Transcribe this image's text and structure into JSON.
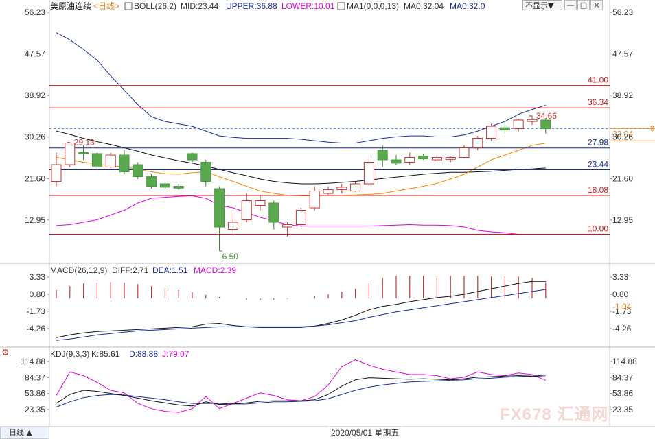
{
  "header": {
    "title": "美原油连续",
    "period_tag": "<日线>",
    "indicators": [
      {
        "text": "BOLL(26,2)",
        "color": "#333333"
      },
      {
        "text": "MID:23.44",
        "color": "#333333"
      },
      {
        "text": "UPPER:36.88",
        "color": "#1a2c99"
      },
      {
        "text": "LOWER:10.01",
        "color": "#e000e0"
      },
      {
        "text": "MA1(0,0,0,13)",
        "color": "#333333"
      },
      {
        "text": "MA0:32.04",
        "color": "#333333"
      },
      {
        "text": "MA0:32.0",
        "color": "#1a2c99"
      }
    ],
    "dropdown_label": "不显示▼",
    "btn_min": "—",
    "btn_close": "×"
  },
  "macd_header": {
    "items": [
      {
        "text": "MACD(26,12,9)",
        "color": "#333333"
      },
      {
        "text": "DIFF:2.71",
        "color": "#333333"
      },
      {
        "text": "DEA:1.51",
        "color": "#1a2c99"
      },
      {
        "text": "MACD:2.39",
        "color": "#e000e0"
      }
    ]
  },
  "kdj_header": {
    "items": [
      {
        "text": "KDJ(9,3,3)",
        "color": "#333333"
      },
      {
        "text": "K:85.61",
        "color": "#333333"
      },
      {
        "text": "D:88.88",
        "color": "#1a2c99"
      },
      {
        "text": "J:79.07",
        "color": "#e000e0"
      }
    ]
  },
  "footer": {
    "period_button": "日线",
    "date_label": "2020/05/01 星期五"
  },
  "watermark": "FX678 汇通网",
  "chart_data": [
    {
      "type": "candlestick",
      "ylim": [
        6.5,
        56.23
      ],
      "y_ticks": [
        "56.23",
        "47.57",
        "38.92",
        "30.26",
        "21.60",
        "12.95"
      ],
      "tick_values": [
        56.23,
        47.57,
        38.92,
        30.26,
        21.6,
        12.95
      ],
      "candles": [
        {
          "o": 21.0,
          "h": 27.0,
          "l": 20.0,
          "c": 24.5
        },
        {
          "o": 24.5,
          "h": 29.1,
          "l": 24.0,
          "c": 29.0
        },
        {
          "o": 27.0,
          "h": 28.5,
          "l": 25.5,
          "c": 26.8
        },
        {
          "o": 26.8,
          "h": 27.0,
          "l": 23.5,
          "c": 24.2
        },
        {
          "o": 24.0,
          "h": 27.0,
          "l": 23.8,
          "c": 26.5
        },
        {
          "o": 26.5,
          "h": 27.5,
          "l": 22.5,
          "c": 23.0
        },
        {
          "o": 24.5,
          "h": 25.0,
          "l": 21.5,
          "c": 22.0
        },
        {
          "o": 22.0,
          "h": 22.5,
          "l": 19.5,
          "c": 20.0
        },
        {
          "o": 20.5,
          "h": 21.0,
          "l": 19.5,
          "c": 19.8
        },
        {
          "o": 20.0,
          "h": 20.5,
          "l": 19.3,
          "c": 19.6
        },
        {
          "o": 26.8,
          "h": 27.0,
          "l": 25.0,
          "c": 25.5
        },
        {
          "o": 25.0,
          "h": 25.5,
          "l": 20.0,
          "c": 21.0
        },
        {
          "o": 19.5,
          "h": 20.0,
          "l": 6.5,
          "c": 11.5
        },
        {
          "o": 11.0,
          "h": 14.5,
          "l": 10.0,
          "c": 12.5
        },
        {
          "o": 13.0,
          "h": 18.5,
          "l": 12.5,
          "c": 17.0
        },
        {
          "o": 16.0,
          "h": 18.0,
          "l": 15.0,
          "c": 17.0
        },
        {
          "o": 16.5,
          "h": 17.0,
          "l": 11.0,
          "c": 12.5
        },
        {
          "o": 11.5,
          "h": 12.5,
          "l": 9.5,
          "c": 12.0
        },
        {
          "o": 12.0,
          "h": 15.5,
          "l": 11.5,
          "c": 15.0
        },
        {
          "o": 15.5,
          "h": 20.0,
          "l": 15.0,
          "c": 19.0
        },
        {
          "o": 18.5,
          "h": 20.0,
          "l": 18.0,
          "c": 19.3
        },
        {
          "o": 19.3,
          "h": 20.5,
          "l": 18.5,
          "c": 19.8
        },
        {
          "o": 19.0,
          "h": 21.0,
          "l": 18.8,
          "c": 20.5
        },
        {
          "o": 20.5,
          "h": 26.0,
          "l": 20.0,
          "c": 25.0
        },
        {
          "o": 27.5,
          "h": 28.5,
          "l": 24.0,
          "c": 25.5
        },
        {
          "o": 25.5,
          "h": 26.5,
          "l": 24.5,
          "c": 24.8
        },
        {
          "o": 25.0,
          "h": 27.0,
          "l": 24.5,
          "c": 26.0
        },
        {
          "o": 26.3,
          "h": 26.8,
          "l": 25.5,
          "c": 25.7
        },
        {
          "o": 25.5,
          "h": 26.5,
          "l": 25.2,
          "c": 26.0
        },
        {
          "o": 25.6,
          "h": 26.3,
          "l": 25.0,
          "c": 26.0
        },
        {
          "o": 26.0,
          "h": 28.5,
          "l": 25.8,
          "c": 28.0
        },
        {
          "o": 28.0,
          "h": 30.5,
          "l": 27.5,
          "c": 30.0
        },
        {
          "o": 30.0,
          "h": 33.0,
          "l": 29.5,
          "c": 32.5
        },
        {
          "o": 32.2,
          "h": 33.5,
          "l": 31.0,
          "c": 31.8
        },
        {
          "o": 32.0,
          "h": 34.0,
          "l": 31.5,
          "c": 33.8
        },
        {
          "o": 33.5,
          "h": 34.7,
          "l": 32.8,
          "c": 33.9
        },
        {
          "o": 33.8,
          "h": 34.2,
          "l": 31.0,
          "c": 32.0
        }
      ],
      "boll_mid": [
        31.5,
        30.8,
        30.0,
        29.3,
        28.7,
        28.0,
        27.3,
        26.5,
        25.9,
        25.3,
        24.8,
        24.2,
        23.5,
        22.8,
        22.2,
        21.5,
        21.0,
        20.7,
        20.5,
        20.5,
        20.6,
        20.8,
        21.0,
        21.3,
        21.6,
        21.9,
        22.2,
        22.5,
        22.7,
        22.9,
        22.9,
        23.0,
        23.1,
        23.3,
        23.5,
        23.6,
        23.8
      ],
      "boll_upper": [
        52.0,
        50.5,
        48.5,
        46.3,
        43.0,
        40.0,
        37.0,
        34.5,
        33.5,
        33.0,
        32.5,
        31.5,
        30.5,
        30.2,
        30.0,
        30.0,
        30.0,
        30.0,
        29.8,
        29.5,
        29.2,
        29.0,
        29.0,
        29.5,
        30.0,
        30.3,
        30.5,
        30.5,
        30.3,
        30.3,
        30.7,
        31.5,
        32.5,
        33.5,
        35.0,
        36.0,
        36.9
      ],
      "boll_lower": [
        11.8,
        12.0,
        12.5,
        13.0,
        14.0,
        15.0,
        16.5,
        17.5,
        17.7,
        17.9,
        18.0,
        17.5,
        16.0,
        15.5,
        14.5,
        13.5,
        12.8,
        12.0,
        11.7,
        11.7,
        11.7,
        11.7,
        11.7,
        11.7,
        11.8,
        11.9,
        12.0,
        11.9,
        11.9,
        11.8,
        11.5,
        10.8,
        10.5,
        10.3,
        10.0,
        10.0,
        10.0
      ],
      "ma_orange": [
        26.0,
        25.5,
        25.0,
        24.6,
        24.3,
        24.0,
        23.5,
        23.0,
        22.6,
        22.5,
        22.8,
        23.0,
        22.0,
        21.0,
        20.0,
        19.0,
        18.5,
        18.1,
        18.0,
        18.0,
        18.1,
        18.1,
        18.2,
        18.3,
        18.5,
        19.0,
        19.5,
        20.0,
        20.6,
        21.5,
        22.5,
        24.0,
        25.5,
        26.5,
        27.5,
        28.5,
        29.0
      ],
      "price_lines": [
        {
          "value": 41.0,
          "label": "41.00"
        },
        {
          "value": 36.34,
          "label": "36.34"
        },
        {
          "value": 27.98,
          "label": "27.98"
        },
        {
          "value": 23.44,
          "label": "23.44"
        },
        {
          "value": 18.08,
          "label": "18.08"
        },
        {
          "value": 10.0,
          "label": "10.00"
        }
      ],
      "line_colors": {
        "27.98": "#1a2c99",
        "23.44": "#1a2c99",
        "41.00": "#d61818",
        "36.34": "#d61818",
        "18.08": "#d61818",
        "10.00": "#d61818"
      },
      "current_price": {
        "value": 32.04,
        "label": "32.04"
      },
      "annotations": [
        {
          "text": "29.13",
          "value": 29.13,
          "index": 1
        },
        {
          "text": "34.66",
          "value": 34.66,
          "index": 35
        },
        {
          "text": "6.50",
          "value": 6.5,
          "index": 12
        }
      ]
    },
    {
      "type": "macd",
      "ylim": [
        -6.0,
        4.0
      ],
      "y_ticks": [
        "3.33",
        "0.80",
        "-1.73",
        "-4.26"
      ],
      "tick_values": [
        3.33,
        0.8,
        -1.73,
        -4.26
      ],
      "current_label": {
        "value": -1.04,
        "label": "-1.04"
      },
      "hist": [
        1.2,
        1.8,
        2.2,
        2.3,
        2.4,
        2.3,
        2.1,
        1.8,
        1.5,
        1.2,
        0.9,
        0.5,
        0.2,
        0.0,
        -0.2,
        -0.3,
        -0.2,
        -0.1,
        0.0,
        0.3,
        0.6,
        1.0,
        1.4,
        2.2,
        3.0,
        3.3,
        3.3,
        3.3,
        3.3,
        3.3,
        3.3,
        3.3,
        3.2,
        3.2,
        3.2,
        3.0,
        2.4
      ],
      "diff": [
        -5.6,
        -5.2,
        -4.9,
        -4.7,
        -4.6,
        -4.5,
        -4.4,
        -4.3,
        -4.2,
        -4.1,
        -4.0,
        -3.6,
        -3.5,
        -3.8,
        -4.0,
        -4.1,
        -4.1,
        -4.1,
        -4.1,
        -3.9,
        -3.5,
        -3.0,
        -2.3,
        -1.5,
        -1.0,
        -0.7,
        -0.3,
        0.0,
        0.3,
        0.5,
        0.8,
        1.2,
        1.6,
        2.0,
        2.4,
        2.7,
        2.7
      ],
      "dea": [
        -6.0,
        -5.8,
        -5.5,
        -5.2,
        -5.0,
        -4.8,
        -4.6,
        -4.5,
        -4.4,
        -4.3,
        -4.2,
        -4.1,
        -4.0,
        -4.0,
        -4.0,
        -4.0,
        -4.0,
        -4.0,
        -4.0,
        -3.9,
        -3.7,
        -3.4,
        -3.1,
        -2.6,
        -2.2,
        -1.8,
        -1.5,
        -1.2,
        -0.9,
        -0.6,
        -0.3,
        0.0,
        0.3,
        0.6,
        0.9,
        1.2,
        1.5
      ]
    },
    {
      "type": "kdj",
      "ylim": [
        15,
        125
      ],
      "y_ticks": [
        "114.88",
        "84.37",
        "53.86",
        "23.35"
      ],
      "tick_values": [
        114.88,
        84.37,
        53.86,
        23.35
      ],
      "k": [
        35,
        52,
        60,
        58,
        54,
        50,
        45,
        40,
        36,
        32,
        30,
        38,
        33,
        34,
        36,
        39,
        40,
        40,
        40,
        42,
        52,
        68,
        80,
        84,
        83,
        82,
        81,
        82,
        81,
        80,
        82,
        85,
        86,
        87,
        88,
        87,
        85.6
      ],
      "d": [
        28,
        38,
        46,
        50,
        52,
        51,
        48,
        45,
        42,
        38,
        35,
        35,
        35,
        34,
        34,
        36,
        38,
        38,
        39,
        40,
        44,
        52,
        60,
        66,
        70,
        73,
        76,
        77,
        78,
        79,
        80,
        82,
        83,
        85,
        86,
        87,
        88.9
      ],
      "j": [
        50,
        95,
        88,
        75,
        60,
        55,
        35,
        25,
        20,
        18,
        25,
        48,
        25,
        35,
        45,
        55,
        50,
        42,
        40,
        48,
        70,
        105,
        118,
        108,
        100,
        95,
        90,
        90,
        88,
        82,
        85,
        95,
        90,
        88,
        93,
        90,
        79
      ]
    }
  ]
}
